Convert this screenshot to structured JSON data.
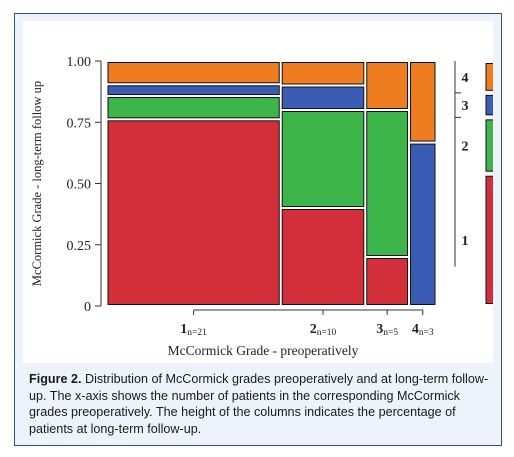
{
  "chart_data": {
    "type": "mosaic",
    "ylabel": "McCormick Grade - long-term follow up",
    "xlabel": "McCormick Grade - preoperatively",
    "ylim": [
      0,
      1
    ],
    "y_ticks": [
      "0",
      "0.25",
      "0.50",
      "0.75",
      "1.00"
    ],
    "y_tick_values": [
      0,
      0.25,
      0.5,
      0.75,
      1.0
    ],
    "columns": [
      {
        "grade": "1",
        "n_label": "n=21",
        "n": 21
      },
      {
        "grade": "2",
        "n_label": "n=10",
        "n": 10
      },
      {
        "grade": "3",
        "n_label": "n=5",
        "n": 5
      },
      {
        "grade": "4",
        "n_label": "n=3",
        "n": 3
      }
    ],
    "series": [
      {
        "name": "1",
        "color": "#d32f3a",
        "values": [
          0.762,
          0.4,
          0.2,
          0.0
        ]
      },
      {
        "name": "2",
        "color": "#3db54a",
        "values": [
          0.095,
          0.4,
          0.6,
          0.0
        ]
      },
      {
        "name": "3",
        "color": "#3a5db3",
        "values": [
          0.048,
          0.1,
          0.0,
          0.667
        ]
      },
      {
        "name": "4",
        "color": "#ee7d22",
        "values": [
          0.095,
          0.1,
          0.2,
          0.333
        ]
      }
    ],
    "right_bar_values": [
      0.54,
      0.23,
      0.1,
      0.13
    ]
  },
  "caption": {
    "lead": "Figure 2.",
    "text": "Distribution of McCormick grades preoperatively and at long-term follow-up. The x-axis shows the number of patients in the corresponding McCormick grades preoperatively. The height of the columns indicates the percentage of patients at long-term follow-up."
  }
}
